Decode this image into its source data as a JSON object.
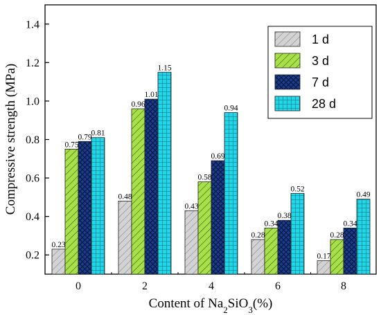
{
  "chart_data": {
    "type": "bar",
    "title": "",
    "xlabel": "Content of Na2SiO3(%)",
    "xlabel_parts": {
      "prefix": "Content of Na",
      "sub1": "2",
      "mid": "SiO",
      "sub2": "3",
      "suffix": "(%)"
    },
    "ylabel": "Compressive strength (MPa)",
    "categories": [
      "0",
      "2",
      "4",
      "6",
      "8"
    ],
    "ylim": [
      0.1,
      1.5
    ],
    "yticks": [
      "0.2",
      "0.4",
      "0.6",
      "0.8",
      "1.0",
      "1.2",
      "1.4"
    ],
    "grid": false,
    "legend_position": "top-right",
    "series": [
      {
        "name": "1 d",
        "values": [
          0.23,
          0.48,
          0.43,
          0.28,
          0.17
        ],
        "labels": [
          "0.23",
          "0.48",
          "0.43",
          "0.28",
          "0.17"
        ],
        "color": "#d3d3d3",
        "pattern": "diagonal-hatch"
      },
      {
        "name": "3 d",
        "values": [
          0.75,
          0.96,
          0.58,
          0.34,
          0.28
        ],
        "labels": [
          "0.75",
          "0.96",
          "0.58",
          "0.34",
          "0.28"
        ],
        "color": "#a8e04a",
        "pattern": "diagonal-hatch"
      },
      {
        "name": "7 d",
        "values": [
          0.79,
          1.01,
          0.69,
          0.38,
          0.34
        ],
        "labels": [
          "0.79",
          "1.01",
          "0.69",
          "0.38",
          "0.34"
        ],
        "color": "#1c3d8e",
        "pattern": "crosshatch"
      },
      {
        "name": "28 d",
        "values": [
          0.81,
          1.15,
          0.94,
          0.52,
          0.49
        ],
        "labels": [
          "0.81",
          "1.15",
          "0.94",
          "0.52",
          "0.49"
        ],
        "color": "#22d6e8",
        "pattern": "grid"
      }
    ]
  }
}
